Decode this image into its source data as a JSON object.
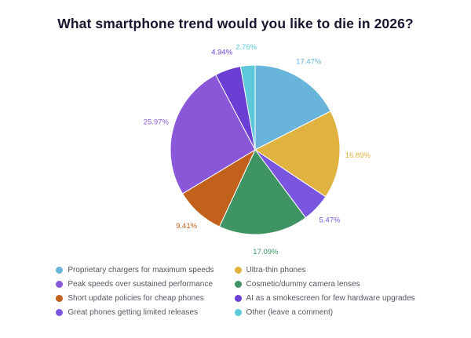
{
  "title": "What smartphone trend would you like to die in 2026?",
  "chart_data": {
    "type": "pie",
    "title": "What smartphone trend would you like to die in 2026?",
    "start_angle_deg": 0,
    "direction": "clockwise",
    "legend_position": "bottom",
    "slices": [
      {
        "label": "Proprietary chargers for maximum speeds",
        "value": 17.47,
        "display": "17.47%",
        "color": "#68b4db"
      },
      {
        "label": "Ultra-thin phones",
        "value": 16.89,
        "display": "16.89%",
        "color": "#e0b23f"
      },
      {
        "label": "Great phones getting limited releases",
        "value": 5.47,
        "display": "5.47%",
        "color": "#7a55e0"
      },
      {
        "label": "Cosmetic/dummy camera lenses",
        "value": 17.09,
        "display": "17.09%",
        "color": "#3f9464"
      },
      {
        "label": "Short update policies for cheap phones",
        "value": 9.41,
        "display": "9.41%",
        "color": "#c2611c"
      },
      {
        "label": "Peak speeds over sustained performance",
        "value": 25.97,
        "display": "25.97%",
        "color": "#8a57d8"
      },
      {
        "label": "AI as a smokescreen for few hardware upgrades",
        "value": 4.94,
        "display": "4.94%",
        "color": "#6b3fd4"
      },
      {
        "label": "Other (leave a comment)",
        "value": 2.76,
        "display": "2.76%",
        "color": "#5cc8d9"
      }
    ],
    "legend": [
      {
        "label": "Proprietary chargers for maximum speeds",
        "color": "#68b4db"
      },
      {
        "label": "Ultra-thin phones",
        "color": "#e0b23f"
      },
      {
        "label": "Peak speeds over sustained performance",
        "color": "#8a57d8"
      },
      {
        "label": "Cosmetic/dummy camera lenses",
        "color": "#3f9464"
      },
      {
        "label": "Short update policies for cheap phones",
        "color": "#c2611c"
      },
      {
        "label": "AI as a smokescreen for few hardware upgrades",
        "color": "#6b3fd4"
      },
      {
        "label": "Great phones getting limited releases",
        "color": "#7a55e0"
      },
      {
        "label": "Other (leave a comment)",
        "color": "#5cc8d9"
      }
    ]
  }
}
